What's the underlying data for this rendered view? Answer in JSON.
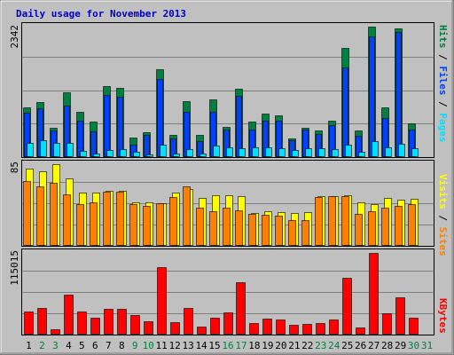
{
  "title": "Daily usage for November 2013",
  "colors": {
    "background": "#c0c0c0",
    "panel": "#c0c0c0",
    "grid": "#808080",
    "label_weekday": "#000000",
    "label_weekend": "#008040",
    "title": "#0000cc"
  },
  "panels": {
    "hits_files_pages": {
      "max_label": "2342",
      "legend": {
        "pages": "Pages",
        "files": "Files",
        "hits": "Hits",
        "sep": " / "
      },
      "legend_colors": {
        "pages": "#00e0ff",
        "files": "#0040ff",
        "hits": "#008040"
      }
    },
    "visits_sites": {
      "max_label": "85",
      "legend": {
        "sites": "Sites",
        "visits": "Visits",
        "sep": " / "
      },
      "legend_colors": {
        "sites": "#ff8000",
        "visits": "#ffff00"
      }
    },
    "kbytes": {
      "max_label": "115015",
      "legend": {
        "kbytes": "KBytes"
      },
      "legend_colors": {
        "kbytes": "#ff0000"
      }
    }
  },
  "chart_data": {
    "type": "bar",
    "title": "Daily usage for November 2013",
    "x": [
      "1",
      "2",
      "3",
      "4",
      "5",
      "6",
      "7",
      "8",
      "9",
      "10",
      "11",
      "12",
      "13",
      "14",
      "15",
      "16",
      "17",
      "18",
      "19",
      "20",
      "21",
      "22",
      "23",
      "24",
      "25",
      "26",
      "27",
      "28",
      "29",
      "30",
      "31"
    ],
    "weekend_days": [
      "2",
      "3",
      "9",
      "10",
      "16",
      "17",
      "23",
      "24",
      "30",
      "31"
    ],
    "series": [
      {
        "name": "Hits",
        "panel": "hits_files_pages",
        "color": "#008040",
        "values": [
          900,
          990,
          530,
          1170,
          810,
          630,
          1270,
          1240,
          350,
          450,
          1580,
          400,
          1010,
          400,
          1030,
          540,
          1230,
          640,
          780,
          750,
          340,
          520,
          470,
          660,
          1960,
          480,
          2342,
          890,
          2310,
          600,
          0
        ]
      },
      {
        "name": "Files",
        "panel": "hits_files_pages",
        "color": "#0040ff",
        "values": [
          800,
          870,
          470,
          920,
          650,
          460,
          1110,
          1080,
          220,
          400,
          1400,
          330,
          810,
          290,
          820,
          490,
          1100,
          490,
          650,
          660,
          300,
          500,
          420,
          570,
          1610,
          390,
          2160,
          700,
          2250,
          500,
          0
        ]
      },
      {
        "name": "Pages",
        "panel": "hits_files_pages",
        "color": "#00e0ff",
        "values": [
          260,
          300,
          260,
          260,
          110,
          60,
          120,
          150,
          100,
          50,
          230,
          60,
          150,
          60,
          200,
          180,
          160,
          170,
          170,
          160,
          120,
          160,
          160,
          150,
          220,
          100,
          280,
          180,
          240,
          160,
          0
        ]
      },
      {
        "name": "Visits",
        "panel": "visits_sites",
        "color": "#ffff00",
        "values": [
          80,
          78,
          85,
          70,
          55,
          55,
          57,
          57,
          45,
          45,
          44,
          55,
          59,
          50,
          53,
          53,
          52,
          34,
          36,
          35,
          34,
          35,
          52,
          52,
          53,
          45,
          43,
          50,
          48,
          49,
          0
        ]
      },
      {
        "name": "Sites",
        "panel": "visits_sites",
        "color": "#ff8000",
        "values": [
          67,
          62,
          66,
          54,
          43,
          45,
          56,
          56,
          43,
          42,
          44,
          51,
          62,
          40,
          36,
          40,
          37,
          33,
          32,
          31,
          27,
          27,
          51,
          52,
          52,
          33,
          36,
          40,
          42,
          43,
          0
        ]
      },
      {
        "name": "KBytes",
        "panel": "kbytes",
        "color": "#ff0000",
        "values": [
          32000,
          38000,
          8000,
          56000,
          33000,
          24000,
          36000,
          36000,
          27000,
          19000,
          95000,
          17000,
          37000,
          11000,
          24000,
          31000,
          74000,
          16000,
          22000,
          21000,
          14000,
          15000,
          16000,
          21000,
          80000,
          10000,
          115015,
          30000,
          52000,
          24000,
          0
        ]
      }
    ],
    "ylim": {
      "hits_files_pages": [
        0,
        2342
      ],
      "visits_sites": [
        0,
        85
      ],
      "kbytes": [
        0,
        115015
      ]
    },
    "grid": true
  }
}
